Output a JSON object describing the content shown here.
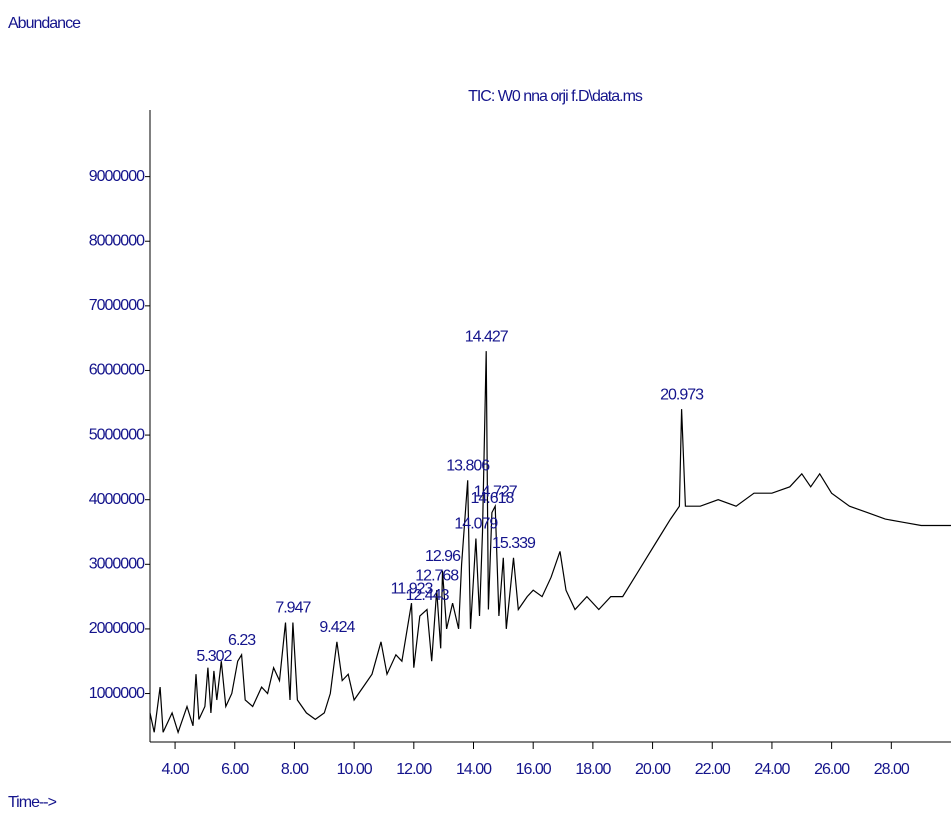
{
  "chart_data": {
    "type": "line",
    "title": "TIC: W0 nna orji f.D\\data.ms",
    "y_label": "Abundance",
    "x_label": "Time-->",
    "color": "#000000",
    "label_color": "#14148c",
    "xlim": [
      3.16,
      30.0
    ],
    "ylim": [
      250000,
      10000000
    ],
    "xticks": [
      {
        "value": 4,
        "label": "4.00"
      },
      {
        "value": 6,
        "label": "6.00"
      },
      {
        "value": 8,
        "label": "8.00"
      },
      {
        "value": 10,
        "label": "10.00"
      },
      {
        "value": 12,
        "label": "12.00"
      },
      {
        "value": 14,
        "label": "14.00"
      },
      {
        "value": 16,
        "label": "16.00"
      },
      {
        "value": 18,
        "label": "18.00"
      },
      {
        "value": 20,
        "label": "20.00"
      },
      {
        "value": 22,
        "label": "22.00"
      },
      {
        "value": 24,
        "label": "24.00"
      },
      {
        "value": 26,
        "label": "26.00"
      },
      {
        "value": 28,
        "label": "28.00"
      }
    ],
    "yticks": [
      1000000,
      2000000,
      3000000,
      4000000,
      5000000,
      6000000,
      7000000,
      8000000,
      9000000
    ],
    "x": [
      3.16,
      3.3,
      3.5,
      3.6,
      3.9,
      4.1,
      4.4,
      4.6,
      4.7,
      4.8,
      5.0,
      5.1,
      5.2,
      5.302,
      5.4,
      5.55,
      5.7,
      5.9,
      6.1,
      6.23,
      6.35,
      6.6,
      6.9,
      7.1,
      7.3,
      7.5,
      7.7,
      7.85,
      7.947,
      8.1,
      8.4,
      8.7,
      9.0,
      9.2,
      9.424,
      9.6,
      9.8,
      10.0,
      10.3,
      10.6,
      10.9,
      11.1,
      11.4,
      11.6,
      11.923,
      12.0,
      12.2,
      12.443,
      12.6,
      12.768,
      12.9,
      12.96,
      13.1,
      13.3,
      13.5,
      13.6,
      13.806,
      13.9,
      14.079,
      14.2,
      14.3,
      14.427,
      14.5,
      14.618,
      14.727,
      14.85,
      15.0,
      15.1,
      15.339,
      15.5,
      15.8,
      16.0,
      16.3,
      16.6,
      16.9,
      17.1,
      17.4,
      17.8,
      18.2,
      18.6,
      19.0,
      19.4,
      19.8,
      20.2,
      20.6,
      20.9,
      20.973,
      21.1,
      21.6,
      22.2,
      22.8,
      23.4,
      24.0,
      24.6,
      25.0,
      25.3,
      25.6,
      26.0,
      26.6,
      27.2,
      27.8,
      28.4,
      29.0,
      29.6,
      30.0
    ],
    "values": [
      700000,
      400000,
      1100000,
      400000,
      700000,
      400000,
      800000,
      500000,
      1300000,
      600000,
      800000,
      1400000,
      700000,
      1350000,
      900000,
      1500000,
      800000,
      1000000,
      1500000,
      1600000,
      900000,
      800000,
      1100000,
      1000000,
      1400000,
      1200000,
      2100000,
      900000,
      2100000,
      900000,
      700000,
      600000,
      700000,
      1000000,
      1800000,
      1200000,
      1300000,
      900000,
      1100000,
      1300000,
      1800000,
      1300000,
      1600000,
      1500000,
      2400000,
      1400000,
      2200000,
      2300000,
      1500000,
      2600000,
      1700000,
      2900000,
      2000000,
      2400000,
      2000000,
      3000000,
      4300000,
      2000000,
      3400000,
      2200000,
      3500000,
      6300000,
      2300000,
      3800000,
      3900000,
      2200000,
      3100000,
      2000000,
      3100000,
      2300000,
      2500000,
      2600000,
      2500000,
      2800000,
      3200000,
      2600000,
      2300000,
      2500000,
      2300000,
      2500000,
      2500000,
      2800000,
      3100000,
      3400000,
      3700000,
      3900000,
      5400000,
      3900000,
      3900000,
      4000000,
      3900000,
      4100000,
      4100000,
      4200000,
      4400000,
      4200000,
      4400000,
      4100000,
      3900000,
      3800000,
      3700000,
      3650000,
      3600000,
      3600000,
      3600000
    ],
    "peaks": [
      5.302,
      6.23,
      7.947,
      9.424,
      11.923,
      12.443,
      12.768,
      12.96,
      13.806,
      14.079,
      14.427,
      14.618,
      14.727,
      15.339,
      20.973
    ]
  }
}
